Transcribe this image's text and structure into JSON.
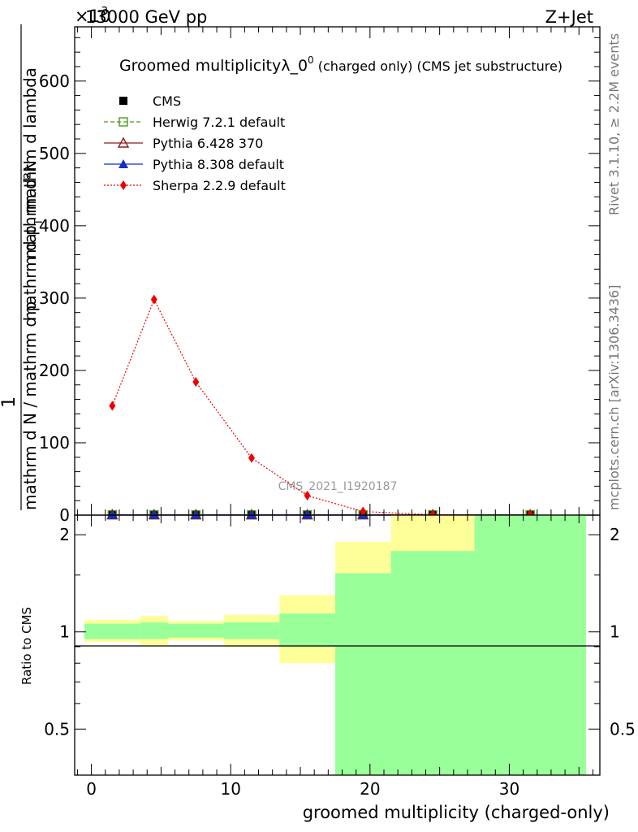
{
  "header": {
    "exponent_label": "×10",
    "exponent_sup": "-3",
    "left": "13000 GeV pp",
    "right": "Z+Jet"
  },
  "side_labels": {
    "top": "Rivet 3.1.10, ≥ 2.2M events",
    "bottom": "mcplots.cern.ch [arXiv:1306.3436]"
  },
  "main_plot": {
    "title_main": "Groomed multiplicityλ_0",
    "title_sup": "0",
    "title_tail": " (charged only) (CMS jet substructure)",
    "ylabel_num": "mathrm d²N",
    "ylabel_pre": "1",
    "ylabel_den": "mathrm d N / mathrm d p",
    "ylabel_den2": "mathrm d p",
    "ylabel_den2_sub": "T",
    "ylabel_den2_tail": " mathrm d lambda",
    "watermark": "CMS_2021_I1920187"
  },
  "ratio_plot": {
    "ylabel": "Ratio to CMS"
  },
  "chart_data": {
    "type": "line",
    "xlabel": "groomed multiplicity (charged-only)",
    "x_ticks": [
      0,
      10,
      20,
      30
    ],
    "main_yticks": [
      0,
      100,
      200,
      300,
      400,
      500,
      600
    ],
    "ratio_yticks": [
      0.5,
      1,
      2
    ],
    "xlim": [
      -1.2,
      36.5
    ],
    "ylim": [
      0,
      675
    ],
    "ratio_ylim": [
      0.36,
      2.3
    ],
    "ratio_log_scale": true,
    "bins": [
      [
        -0.5,
        3.5
      ],
      [
        3.5,
        5.5
      ],
      [
        5.5,
        9.5
      ],
      [
        9.5,
        13.5
      ],
      [
        13.5,
        17.5
      ],
      [
        17.5,
        21.5
      ],
      [
        21.5,
        27.5
      ],
      [
        27.5,
        35.5
      ]
    ],
    "x": [
      1.5,
      4.5,
      7.5,
      11.5,
      15.5,
      19.5,
      24.5,
      31.5
    ],
    "series": [
      {
        "name": "CMS",
        "color": "#000000",
        "marker": "square-filled",
        "line": "none",
        "values": [
          0.5,
          0.5,
          0.5,
          0.5,
          0.5,
          0.5,
          0.5,
          0.5
        ]
      },
      {
        "name": "Herwig 7.2.1 default",
        "color": "#4a9a1a",
        "marker": "square-open",
        "line": "dashed",
        "values": [
          0.5,
          0.5,
          0.5,
          0.5,
          0.5,
          0.5,
          0.5,
          0.5
        ]
      },
      {
        "name": "Pythia 6.428 370",
        "color": "#8b1a1a",
        "marker": "triangle-open",
        "line": "solid",
        "values": [
          0.5,
          0.5,
          0.5,
          0.5,
          0.5,
          0.5,
          0.5,
          0.5
        ]
      },
      {
        "name": "Pythia 8.308 default",
        "color": "#1030c8",
        "marker": "triangle-filled",
        "line": "solid",
        "values": [
          0.5,
          0.5,
          0.5,
          0.5,
          0.5,
          0.5,
          0.5,
          0.5
        ]
      },
      {
        "name": "Sherpa 2.2.9 default",
        "color": "#ee0000",
        "marker": "diamond-filled",
        "line": "dotted",
        "values": [
          151,
          298,
          184,
          79,
          27,
          5,
          0.5,
          0.5
        ]
      }
    ],
    "ratio_bands": {
      "outer_color": "#ffff99",
      "inner_color": "#99ff99",
      "outer": [
        [
          0.93,
          1.09
        ],
        [
          0.91,
          1.12
        ],
        [
          0.94,
          1.08
        ],
        [
          0.9,
          1.13
        ],
        [
          0.8,
          1.3
        ],
        [
          0.58,
          1.9
        ],
        [
          0.36,
          2.3
        ],
        [
          0.36,
          2.3
        ]
      ],
      "inner": [
        [
          0.95,
          1.06
        ],
        [
          0.95,
          1.07
        ],
        [
          0.96,
          1.06
        ],
        [
          0.95,
          1.07
        ],
        [
          0.9,
          1.14
        ],
        [
          0.36,
          1.52
        ],
        [
          0.36,
          1.78
        ],
        [
          0.36,
          2.3
        ]
      ]
    }
  }
}
